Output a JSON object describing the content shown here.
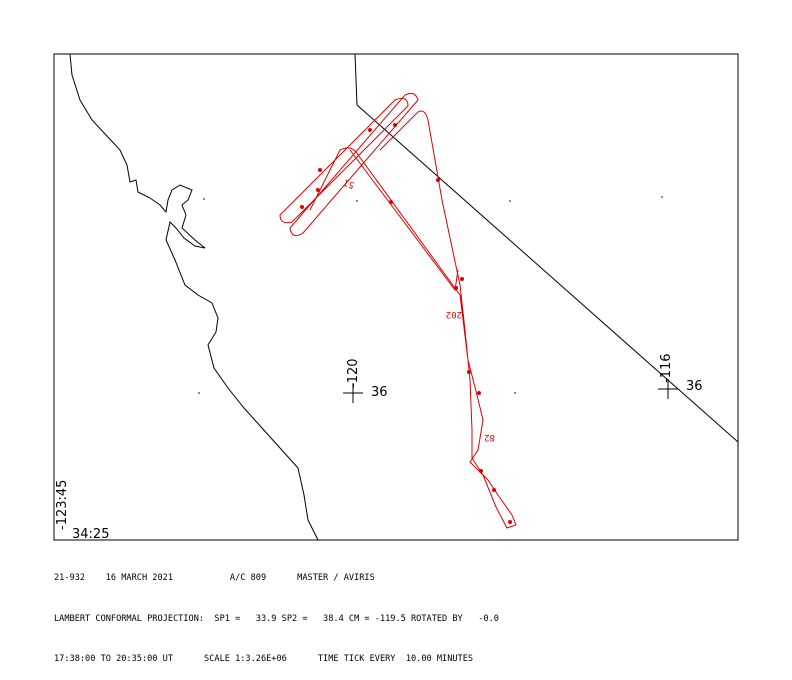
{
  "map": {
    "labels": {
      "lon_center": "-120",
      "lat_center": "36",
      "lon_right": "-116",
      "lat_right": "36",
      "lon_corner": "-123:45",
      "lat_corner": "34:25"
    },
    "track_labels": [
      "51",
      "202",
      "82"
    ]
  },
  "footer": {
    "lines": [
      "21-932    16 MARCH 2021           A/C 809      MASTER / AVIRIS",
      "LAMBERT CONFORMAL PROJECTION:  SP1 =   33.9 SP2 =   38.4 CM = -119.5 ROTATED BY   -0.0",
      "17:38:00 TO 20:35:00 UT      SCALE 1:3.26E+06      TIME TICK EVERY  10.00 MINUTES"
    ]
  }
}
